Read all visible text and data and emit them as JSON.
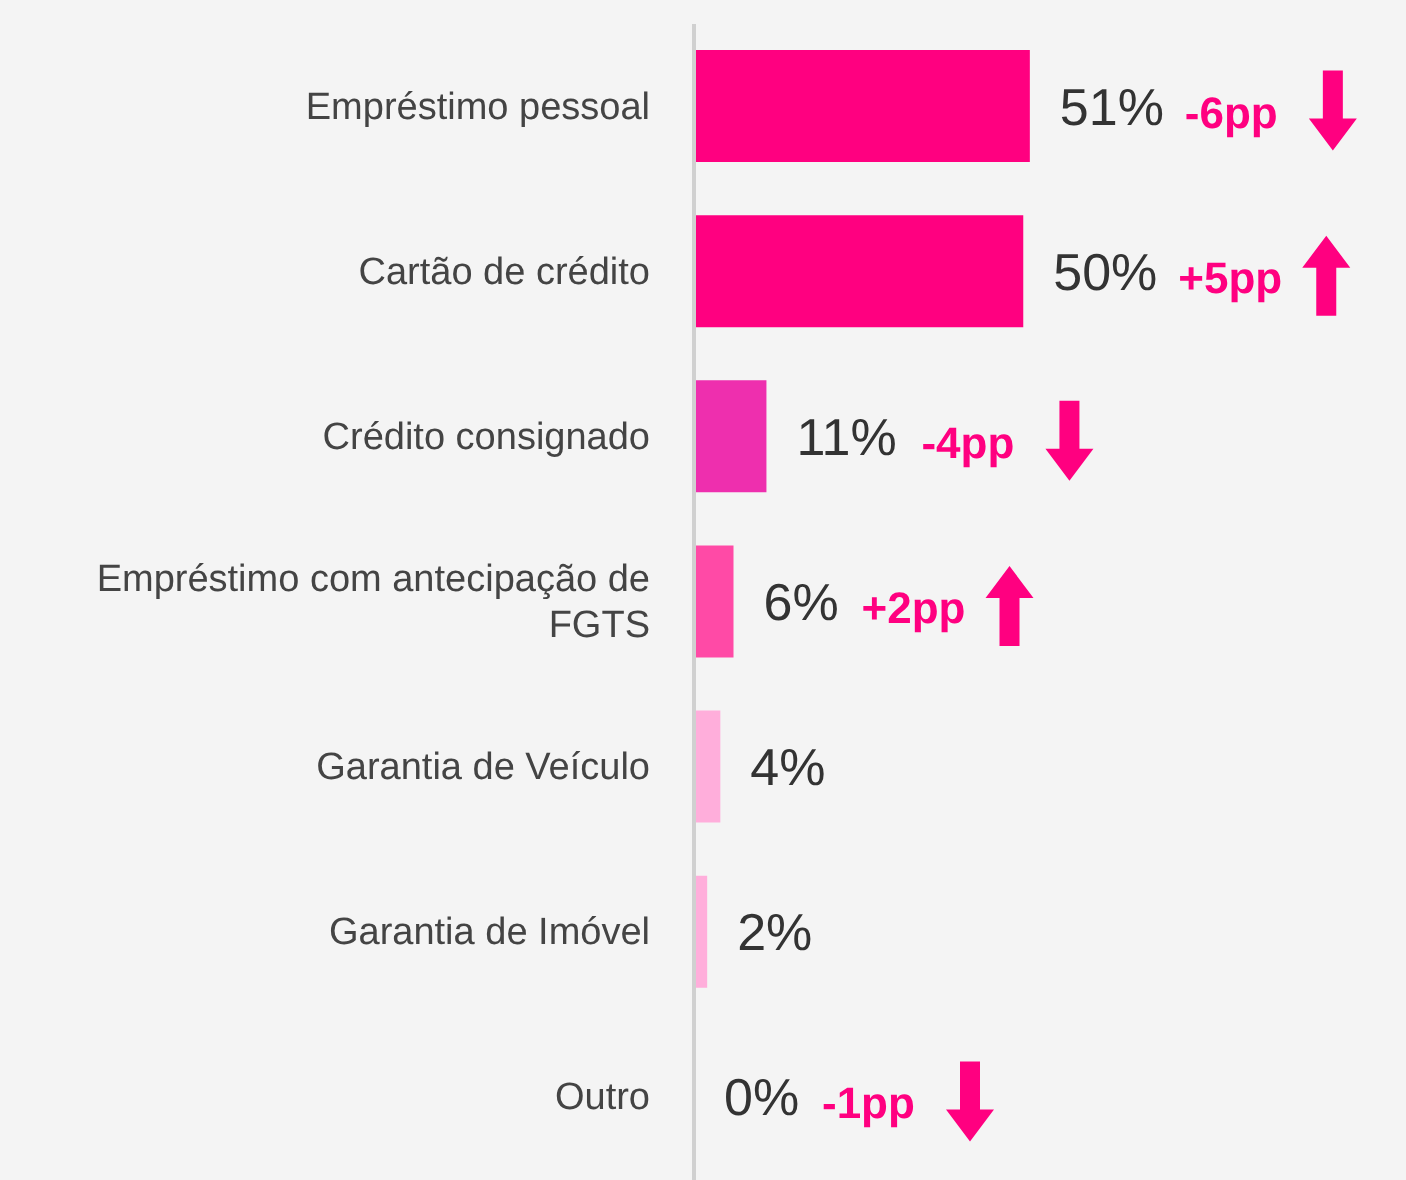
{
  "chart_data": {
    "type": "bar",
    "orientation": "horizontal",
    "categories": [
      "Empréstimo pessoal",
      "Cartão de crédito",
      "Crédito consignado",
      "Empréstimo com antecipação de FGTS",
      "Garantia de Veículo",
      "Garantia de Imóvel",
      "Outro"
    ],
    "values": [
      51,
      50,
      11,
      6,
      4,
      2,
      0
    ],
    "value_labels": [
      "51%",
      "50%",
      "11%",
      "6%",
      "4%",
      "2%",
      "0%"
    ],
    "colors": [
      "#ff0080",
      "#ff0080",
      "#ee2fae",
      "#ff4aa6",
      "#ffaedb",
      "#ffaedb",
      "#ffaedb"
    ],
    "annotations": [
      "-6pp",
      "+5pp",
      "-4pp",
      "+2pp",
      "-1pp"
    ]
  }
}
